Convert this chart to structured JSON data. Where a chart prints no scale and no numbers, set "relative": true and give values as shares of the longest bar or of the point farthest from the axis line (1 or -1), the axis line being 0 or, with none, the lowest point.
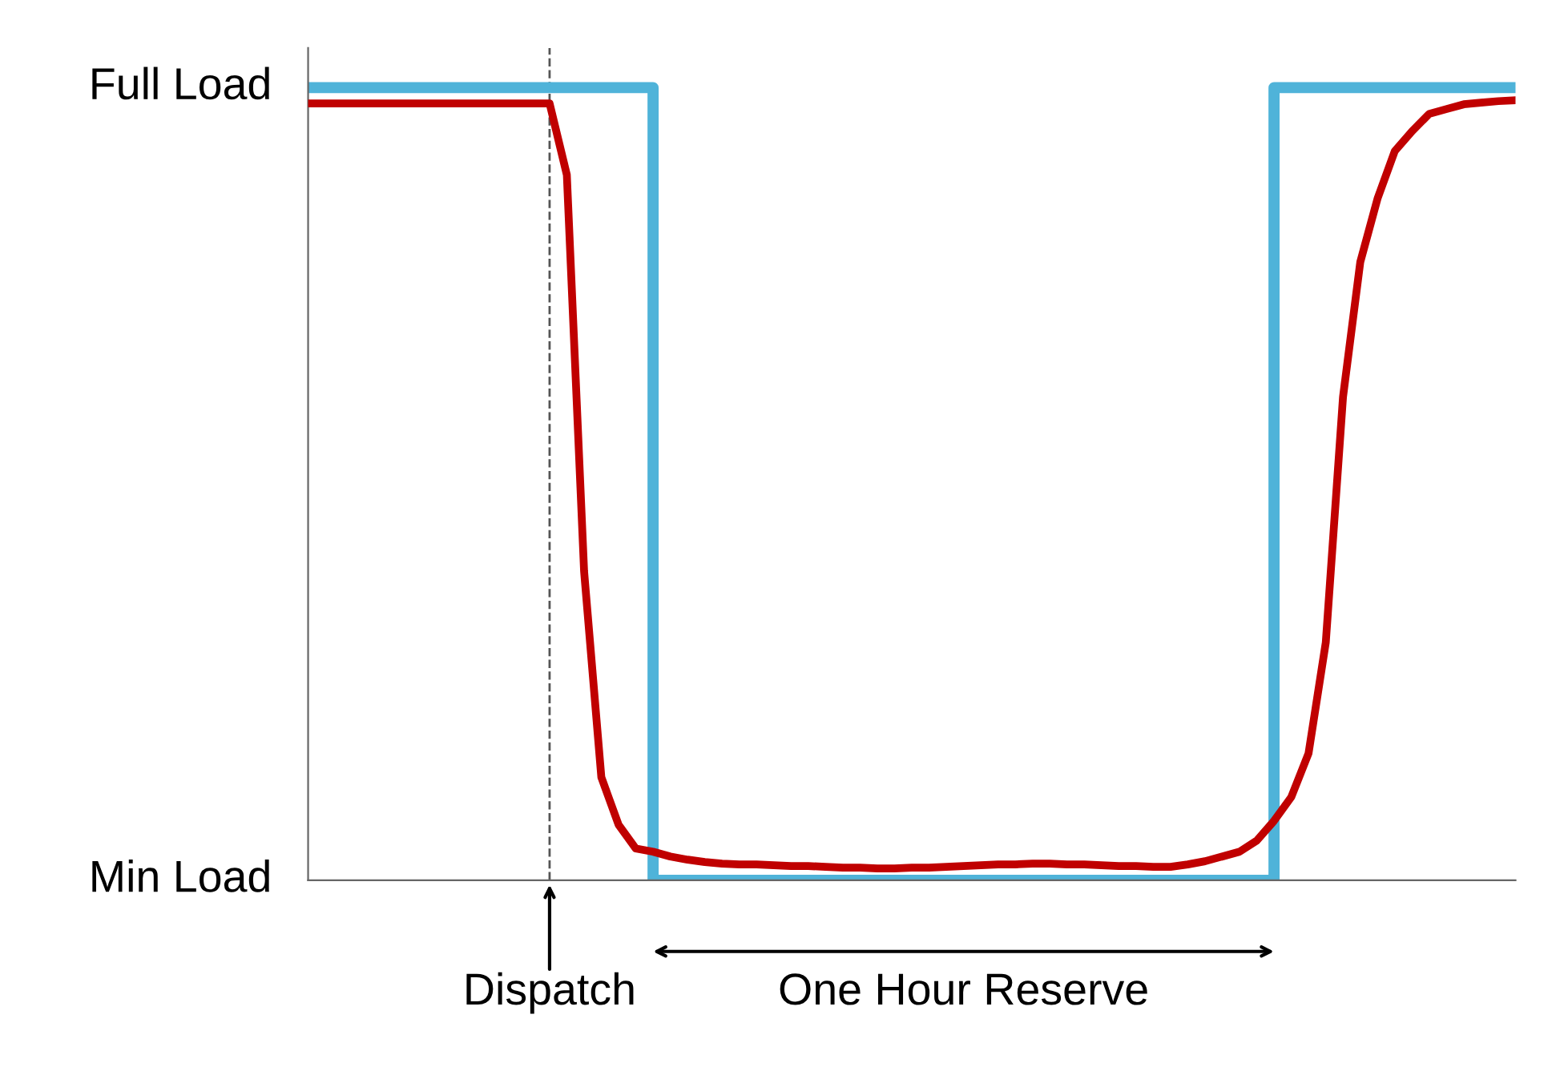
{
  "chart_data": {
    "type": "line",
    "categories": [
      null,
      null,
      null,
      null,
      null,
      null,
      null,
      null,
      null,
      null,
      null,
      null,
      null,
      null,
      null,
      null,
      null,
      null,
      null,
      null,
      null,
      null,
      null,
      null,
      null,
      null,
      null,
      null,
      null,
      null,
      null,
      null,
      null,
      null,
      null,
      null,
      null,
      null,
      null,
      null,
      null,
      null,
      null,
      null,
      null,
      null,
      null,
      null,
      null,
      null,
      null,
      null,
      null,
      null,
      null,
      null,
      null,
      null,
      null,
      null,
      null,
      null,
      null,
      null,
      null,
      null,
      null,
      null,
      null,
      null,
      null
    ],
    "relative": true,
    "grid": false,
    "series": [
      {
        "type": "step",
        "color": "#4fb3d9",
        "values": [
          1,
          1,
          1,
          1,
          1,
          1,
          1,
          1,
          1,
          1,
          1,
          1,
          1,
          1,
          1,
          1,
          1,
          1,
          1,
          1,
          0,
          0,
          0,
          0,
          0,
          0,
          0,
          0,
          0,
          0,
          0,
          0,
          0,
          0,
          0,
          0,
          0,
          0,
          0,
          0,
          0,
          0,
          0,
          0,
          0,
          0,
          0,
          0,
          0,
          0,
          0,
          0,
          0,
          0,
          0,
          0,
          1,
          1,
          1,
          1,
          1,
          1,
          1,
          1,
          1,
          1,
          1,
          1,
          1,
          1,
          1
        ]
      },
      {
        "color": "#c00000",
        "values": [
          0.98,
          0.98,
          0.98,
          0.98,
          0.98,
          0.98,
          0.98,
          0.98,
          0.98,
          0.98,
          0.98,
          0.98,
          0.98,
          0.98,
          0.98,
          0.89,
          0.39,
          0.13,
          0.07,
          0.04,
          0.036,
          0.03,
          0.026,
          0.023,
          0.021,
          0.02,
          0.02,
          0.019,
          0.018,
          0.018,
          0.017,
          0.016,
          0.016,
          0.015,
          0.015,
          0.016,
          0.016,
          0.017,
          0.018,
          0.019,
          0.02,
          0.02,
          0.021,
          0.021,
          0.02,
          0.02,
          0.019,
          0.018,
          0.018,
          0.017,
          0.017,
          0.02,
          0.024,
          0.03,
          0.036,
          0.05,
          0.075,
          0.105,
          0.16,
          0.3,
          0.61,
          0.78,
          0.86,
          0.92,
          0.945,
          0.967,
          0.973,
          0.979,
          0.981,
          0.983,
          0.984
        ]
      }
    ],
    "annotations": [
      "Dispatch",
      "One Hour Reserve",
      "Full Load",
      "Min Load"
    ]
  }
}
